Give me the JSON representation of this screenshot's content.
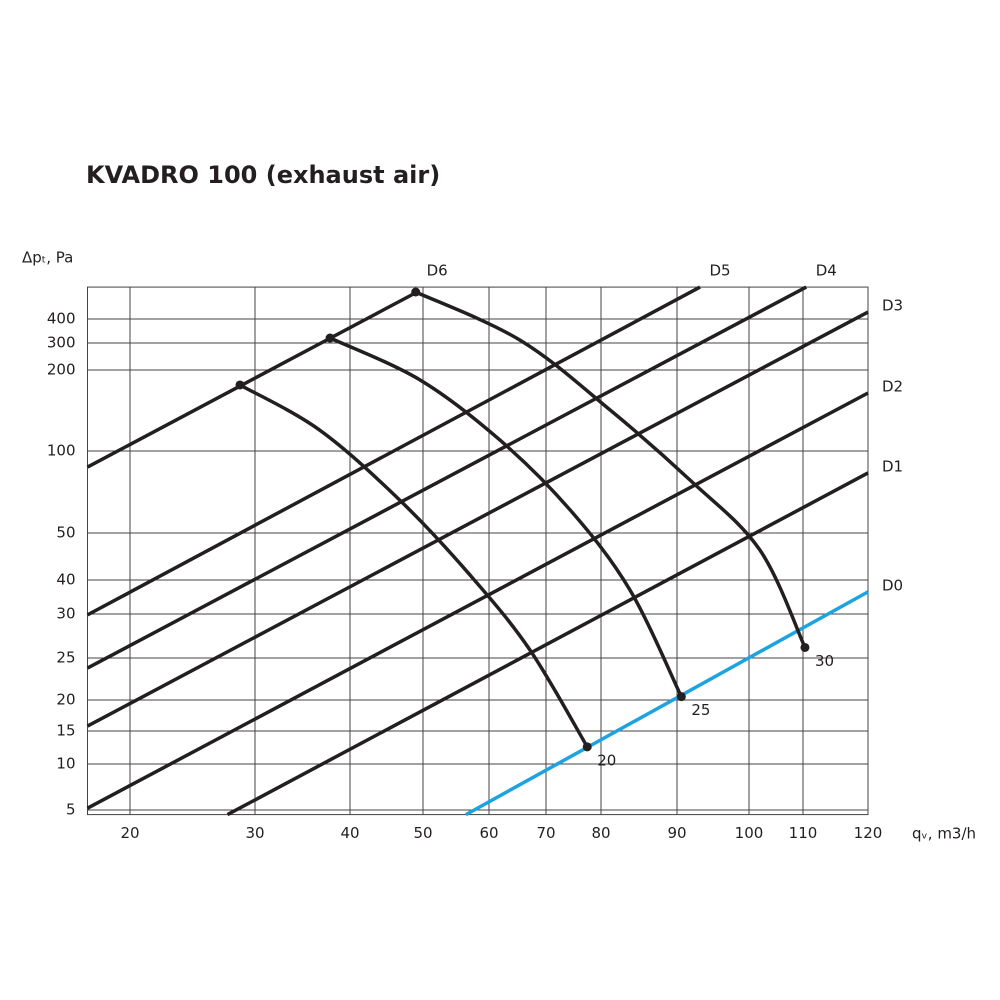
{
  "chart_data": {
    "type": "line",
    "title": "KVADRO 100 (exhaust air)",
    "x_label": "qᵥ, m3/h",
    "y_label": "Δpₜ, Pa",
    "xlim": [
      16.6,
      120
    ],
    "ylim": [
      4.5,
      533
    ],
    "xticks": [
      20,
      30,
      40,
      50,
      60,
      70,
      80,
      90,
      100,
      110,
      120
    ],
    "yticks": [
      5,
      10,
      15,
      20,
      25,
      30,
      40,
      50,
      100,
      200,
      300,
      400
    ],
    "grid": true,
    "series": [
      {
        "name": "D0",
        "color": "#1ca3e0",
        "x": [
          56.5,
          120
        ],
        "values": [
          4.5,
          36.5
        ]
      },
      {
        "name": "D1",
        "color": "#231f20",
        "x": [
          27.8,
          120
        ],
        "values": [
          4.5,
          86.6
        ]
      },
      {
        "name": "D2",
        "color": "#231f20",
        "x": [
          16.6,
          120
        ],
        "values": [
          5.2,
          171.6
        ]
      },
      {
        "name": "D3",
        "color": "#231f20",
        "x": [
          16.6,
          120
        ],
        "values": [
          15.8,
          429
        ]
      },
      {
        "name": "D4",
        "color": "#231f20",
        "x": [
          16.6,
          110.5
        ],
        "values": [
          23.8,
          533
        ]
      },
      {
        "name": "D5",
        "color": "#231f20",
        "x": [
          16.6,
          93.2
        ],
        "values": [
          29.9,
          533
        ]
      },
      {
        "name": "D6",
        "color": "#231f20",
        "x": [
          16.6,
          49.2
        ],
        "values": [
          90.2,
          512.5
        ]
      }
    ],
    "curves": [
      {
        "name": "20",
        "color": "#231f20",
        "x": [
          28.8,
          36.8,
          46.8,
          57.1,
          67.2,
          77.5
        ],
        "values": [
          181.5,
          125.9,
          70.1,
          41.1,
          25.9,
          12.6
        ]
      },
      {
        "name": "25",
        "color": "#231f20",
        "x": [
          37.9,
          49.6,
          61.9,
          74.4,
          83.8,
          90.6
        ],
        "values": [
          320.8,
          187.7,
          113.6,
          64.0,
          37.1,
          20.4
        ]
      },
      {
        "name": "30",
        "color": "#231f20",
        "x": [
          49.0,
          65.4,
          81.2,
          91.8,
          102,
          110.3
        ],
        "values": [
          512.5,
          312.5,
          150.6,
          82.3,
          46.4,
          26.2
        ]
      }
    ]
  }
}
